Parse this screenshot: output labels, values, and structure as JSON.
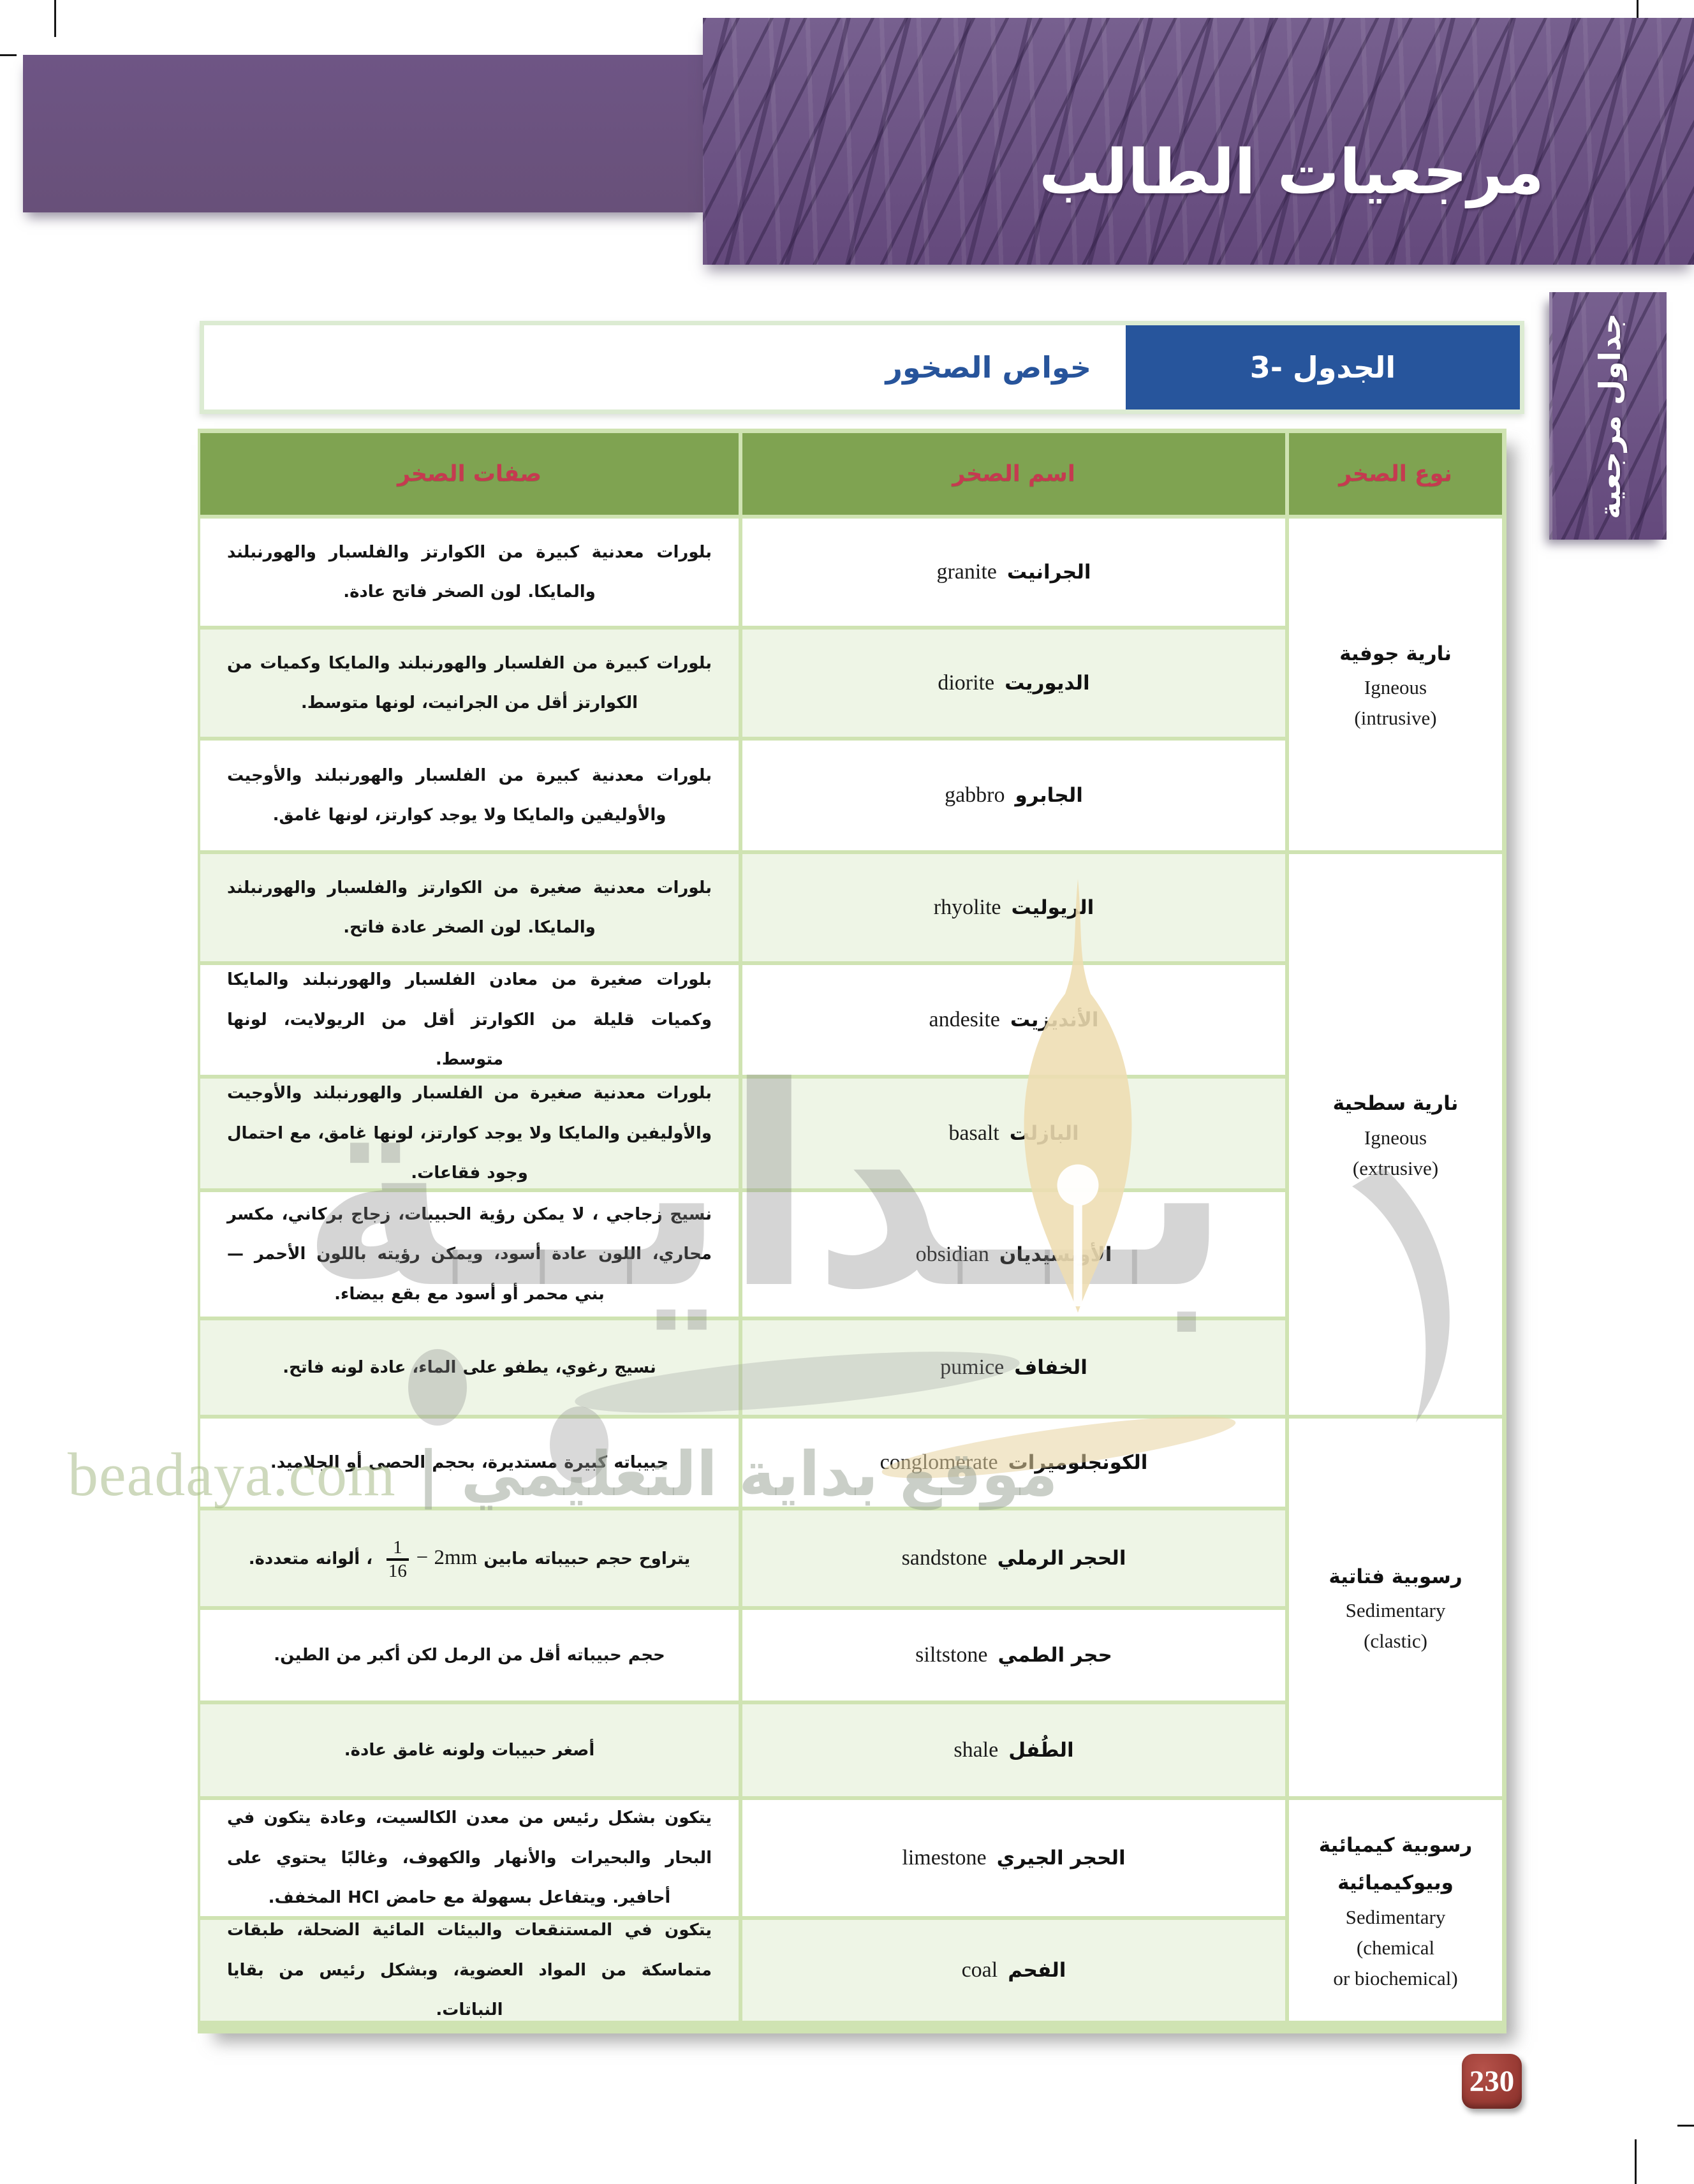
{
  "banner": {
    "title": "مرجعيات الطالب"
  },
  "sidebar": {
    "label": "جداول مرجعية"
  },
  "caption": {
    "label": "الجدول -3",
    "title": "خواص الصخور"
  },
  "badge": {
    "page_number": "230"
  },
  "watermark": {
    "big_word": "بــدايــة",
    "line_ar": "موقع بداية التعليمي",
    "separator": "|",
    "site": "beadaya.com"
  },
  "colors": {
    "banner_purple": "#6d5384",
    "caption_blue": "#27559c",
    "header_green": "#7fa351",
    "header_text_red": "#c53a50",
    "row_pale_green": "#eef5e6",
    "grid_green": "#cfe3b2",
    "badge_red": "#9c3d36"
  },
  "table": {
    "headers": {
      "desc": "صفات الصخر",
      "name": "اسم الصخر",
      "type": "نوع الصخر"
    },
    "groups": [
      {
        "lines_ar": [
          "نارية جوفية"
        ],
        "lines_en": [
          "Igneous",
          "(intrusive)"
        ],
        "span": 3
      },
      {
        "lines_ar": [
          "نارية سطحية"
        ],
        "lines_en": [
          "Igneous",
          "(extrusive)"
        ],
        "span": 5
      },
      {
        "lines_ar": [
          "رسوبية فتاتية"
        ],
        "lines_en": [
          "Sedimentary",
          "(clastic)"
        ],
        "span": 4
      },
      {
        "lines_ar": [
          "رسوبية كيميائية",
          "وبيوكيميائية"
        ],
        "lines_en": [
          "Sedimentary",
          "chemical)",
          "(or biochemical"
        ],
        "span": 2
      }
    ],
    "rows": [
      {
        "name_ar": "الجرانيت",
        "name_en": "granite",
        "desc": "بلورات معدنية كبيرة من الكوارتز والفلسبار والهورنبلند والمايكا. لون الصخر فاتح عادة."
      },
      {
        "name_ar": "الديوريت",
        "name_en": "diorite",
        "desc": "بلورات كبيرة من الفلسبار والهورنبلند والمايكا وكميات من الكوارتز أقل من الجرانيت، لونها متوسط."
      },
      {
        "name_ar": "الجابرو",
        "name_en": "gabbro",
        "desc": "بلورات معدنية كبيرة من الفلسبار والهورنبلند والأوجيت والأوليفين والمايكا ولا يوجد كوارتز، لونها غامق."
      },
      {
        "name_ar": "الريوليت",
        "name_en": "rhyolite",
        "desc": "بلورات معدنية صغيرة من الكوارتز والفلسبار والهورنبلند والمايكا. لون الصخر عادة فاتح."
      },
      {
        "name_ar": "الأنديزيت",
        "name_en": "andesite",
        "desc": "بلورات صغيرة من معادن الفلسبار والهورنبلند والمايكا وكميات قليلة من الكوارتز أقل من الريولايت، لونها متوسط."
      },
      {
        "name_ar": "البازلت",
        "name_en": "basalt",
        "desc": "بلورات معدنية صغيرة من الفلسبار والهورنبلند والأوجيت والأوليفين والمايكا ولا يوجد كوارتز، لونها غامق، مع احتمال وجود فقاعات."
      },
      {
        "name_ar": "الأوبسيديان",
        "name_en": "obsidian",
        "desc": "نسيج زجاجي ، لا يمكن رؤية الحبيبات، زجاج بركاني، مكسر محاري، اللون عادة أسود، ويمكن رؤيته باللون الأحمر — بني محمر أو أسود مع بقع بيضاء."
      },
      {
        "name_ar": "الخفاف",
        "name_en": "pumice",
        "desc": "نسيج رغوي، يطفو على الماء، عادة لونه فاتح."
      },
      {
        "name_ar": "الكونجلوميرات",
        "name_en": "conglomerate",
        "desc": "حبيباته كبيرة مستديرة، بحجم الحصى أو الجلاميد."
      },
      {
        "name_ar": "الحجر الرملي",
        "name_en": "sandstone",
        "desc_parts": {
          "prefix": "يتراوح حجم حبيباته مابين",
          "range_latin": "− 2mm",
          "frac_num": "1",
          "frac_den": "16",
          "suffix": "، ألوانه متعددة."
        }
      },
      {
        "name_ar": "حجر الطمي",
        "name_en": "siltstone",
        "desc": "حجم حبيباته أقل من الرمل لكن أكبر من الطين."
      },
      {
        "name_ar": "الطُفل",
        "name_en": "shale",
        "desc": "أصغر حبيبات ولونه غامق عادة."
      },
      {
        "name_ar": "الحجر الجيري",
        "name_en": "limestone",
        "desc": "يتكون بشكل رئيس من معدن الكالسيت، وعادة يتكون في البحار والبحيرات والأنهار والكهوف، وغالبًا يحتوي على أحافير. ويتفاعل بسهولة مع حامض HCl المخفف."
      },
      {
        "name_ar": "الفحم",
        "name_en": "coal",
        "desc": "يتكون في المستنقعات والبيئات المائية الضحلة، طبقات متماسكة من المواد العضوية، وبشكل رئيس من بقايا النباتات."
      }
    ]
  }
}
